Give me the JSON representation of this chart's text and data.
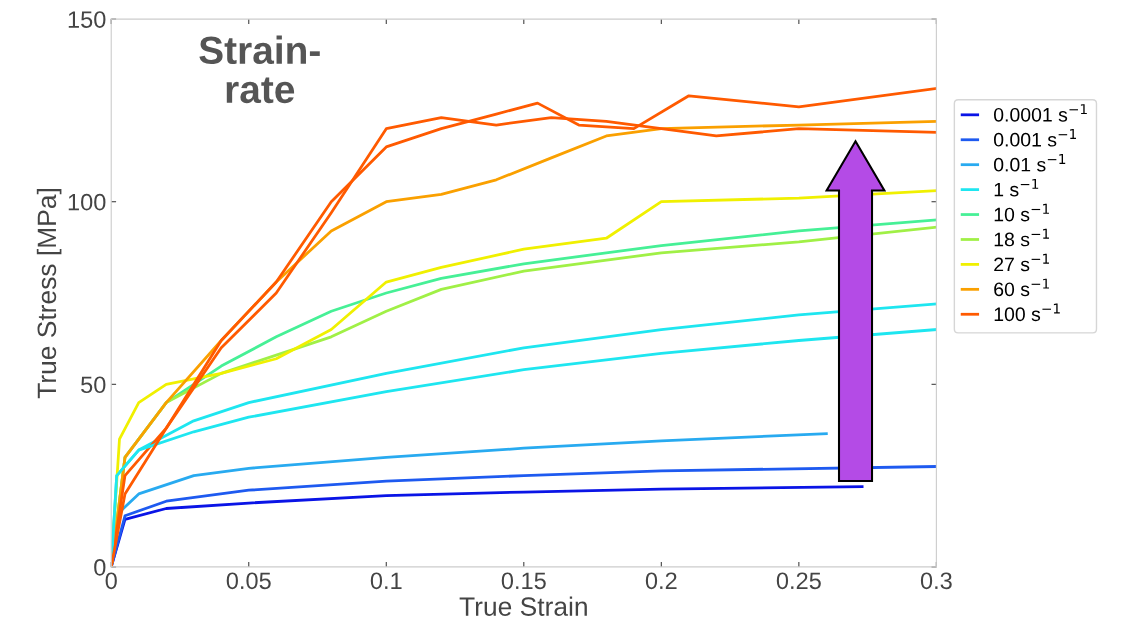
{
  "chart_data": {
    "type": "line",
    "xlabel": "True Strain",
    "ylabel": "True Stress [MPa]",
    "annotations": [
      "Strain-\nrate"
    ],
    "xlim": [
      0,
      0.3
    ],
    "xticks": [
      0,
      0.05,
      0.1,
      0.15,
      0.2,
      0.25,
      0.3
    ],
    "ylim": [
      0,
      150
    ],
    "yticks": [
      0,
      50,
      100,
      150
    ],
    "grid": false,
    "legend": "right",
    "marker": "none",
    "line_style": "solid",
    "series": [
      {
        "name": "0.0001 s$^{−1}$",
        "color": "#0a14e6",
        "x": [
          0,
          0.005,
          0.02,
          0.05,
          0.1,
          0.15,
          0.2,
          0.273
        ],
        "values": [
          0,
          13,
          16,
          17.5,
          19.5,
          20.5,
          21.3,
          22
        ]
      },
      {
        "name": "0.001 s$^{−1}$",
        "color": "#1e5af0",
        "x": [
          0,
          0.005,
          0.02,
          0.05,
          0.1,
          0.15,
          0.2,
          0.3
        ],
        "values": [
          0,
          14,
          18,
          21,
          23.5,
          25,
          26.3,
          27.5
        ]
      },
      {
        "name": "0.01 s$^{−1}$",
        "color": "#28aaf0",
        "x": [
          0,
          0.003,
          0.01,
          0.03,
          0.05,
          0.1,
          0.15,
          0.2,
          0.26
        ],
        "values": [
          0,
          15,
          20,
          25,
          27,
          30,
          32.5,
          34.5,
          36.5
        ]
      },
      {
        "name": "1 s$^{−1}$",
        "color": "#1ee6f0",
        "x": [
          0,
          0.002,
          0.01,
          0.03,
          0.05,
          0.1,
          0.15,
          0.2,
          0.25,
          0.3
        ],
        "values": [
          0,
          25,
          32,
          40,
          45,
          53,
          60,
          65,
          69,
          72
        ]
      },
      {
        "name": "10 s$^{−1}$",
        "color": "#46f096",
        "x": [
          0,
          0.005,
          0.02,
          0.04,
          0.06,
          0.08,
          0.1,
          0.12,
          0.15,
          0.2,
          0.25,
          0.3
        ],
        "values": [
          0,
          30,
          45,
          55,
          63,
          70,
          75,
          79,
          83,
          88,
          92,
          95
        ]
      },
      {
        "name": "18 s$^{−1}$",
        "color": "#a0f046",
        "x": [
          0,
          0.005,
          0.02,
          0.04,
          0.06,
          0.08,
          0.1,
          0.12,
          0.15,
          0.2,
          0.25,
          0.3
        ],
        "values": [
          0,
          30,
          45,
          53,
          58,
          63,
          70,
          76,
          81,
          86,
          89,
          93
        ]
      },
      {
        "name": "27 s$^{−1}$",
        "color": "#f0f000",
        "x": [
          0,
          0.003,
          0.01,
          0.02,
          0.04,
          0.06,
          0.08,
          0.1,
          0.12,
          0.15,
          0.18,
          0.2,
          0.25,
          0.3
        ],
        "values": [
          0,
          35,
          45,
          50,
          53,
          57,
          65,
          78,
          82,
          87,
          90,
          100,
          101,
          103
        ]
      },
      {
        "name": "60 s$^{−1}$",
        "color": "#faa000",
        "x": [
          0,
          0.005,
          0.02,
          0.04,
          0.06,
          0.08,
          0.1,
          0.12,
          0.14,
          0.16,
          0.18,
          0.2,
          0.25,
          0.3
        ],
        "values": [
          0,
          30,
          45,
          62,
          78,
          92,
          100,
          102,
          106,
          112,
          118,
          120,
          121,
          122
        ]
      },
      {
        "name": "100 s$^{−1}$",
        "color": "#ff5a00",
        "x": [
          0,
          0.005,
          0.02,
          0.04,
          0.06,
          0.08,
          0.1,
          0.12,
          0.14,
          0.16,
          0.18,
          0.2,
          0.22,
          0.25,
          0.3
        ],
        "values": [
          0,
          25,
          38,
          60,
          75,
          97,
          120,
          123,
          121,
          123,
          122,
          120,
          118,
          120,
          119
        ]
      },
      {
        "color": "#1ee6f0",
        "x": [
          0,
          0.002,
          0.01,
          0.03,
          0.05,
          0.1,
          0.15,
          0.2,
          0.25,
          0.3
        ],
        "values": [
          0,
          25,
          32,
          37,
          41,
          48,
          54,
          58.5,
          62,
          65
        ]
      },
      {
        "color": "#ff5a00",
        "x": [
          0,
          0.005,
          0.02,
          0.04,
          0.06,
          0.08,
          0.1,
          0.12,
          0.14,
          0.155,
          0.17,
          0.19,
          0.21,
          0.25,
          0.3
        ],
        "values": [
          0,
          20,
          38,
          62,
          78,
          100,
          115,
          120,
          124,
          127,
          121,
          120,
          129,
          126,
          131
        ]
      }
    ]
  }
}
